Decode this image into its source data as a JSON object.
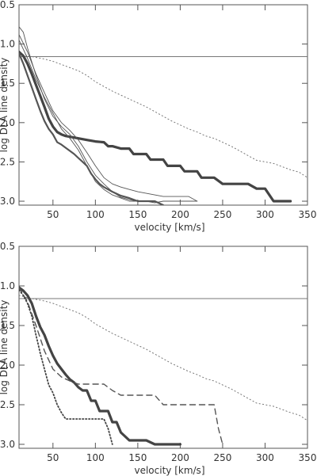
{
  "chart_data": [
    {
      "type": "line",
      "xlabel": "velocity [km/s]",
      "ylabel": "log DLA line density",
      "xlim": [
        10,
        350
      ],
      "ylim": [
        -3.05,
        -0.5
      ],
      "xticks": [
        50,
        100,
        150,
        200,
        250,
        300,
        350
      ],
      "yticks": [
        -0.5,
        -1.0,
        -1.5,
        -2.0,
        -2.5,
        -3.0
      ],
      "xtick_labels": [
        "50",
        "100",
        "150",
        "200",
        "250",
        "300",
        "350"
      ],
      "ytick_labels": [
        "-0.5",
        "-1.0",
        "-1.5",
        "-2.0",
        "-2.5",
        "-3.0"
      ],
      "grid": false,
      "hline": -1.16,
      "series": [
        {
          "style": "dotted",
          "x": [
            10,
            20,
            30,
            40,
            50,
            60,
            70,
            80,
            90,
            100,
            110,
            120,
            130,
            140,
            150,
            160,
            170,
            180,
            190,
            200,
            210,
            220,
            230,
            240,
            250,
            260,
            270,
            280,
            290,
            300,
            310,
            320,
            330,
            340,
            350
          ],
          "y": [
            -1.12,
            -1.15,
            -1.17,
            -1.19,
            -1.22,
            -1.26,
            -1.3,
            -1.34,
            -1.4,
            -1.48,
            -1.54,
            -1.6,
            -1.65,
            -1.7,
            -1.75,
            -1.8,
            -1.86,
            -1.92,
            -1.98,
            -2.03,
            -2.08,
            -2.12,
            -2.17,
            -2.2,
            -2.25,
            -2.3,
            -2.36,
            -2.42,
            -2.48,
            -2.5,
            -2.52,
            -2.56,
            -2.6,
            -2.63,
            -2.7
          ]
        },
        {
          "style": "thick",
          "x": [
            10,
            15,
            20,
            25,
            30,
            35,
            40,
            45,
            50,
            55,
            60,
            65,
            70,
            75,
            80,
            85,
            90,
            100,
            110,
            115,
            120,
            130,
            140,
            145,
            150,
            160,
            165,
            170,
            180,
            185,
            190,
            200,
            205,
            210,
            220,
            225,
            230,
            240,
            250,
            260,
            270,
            280,
            290,
            300,
            310,
            320,
            330
          ],
          "y": [
            -1.1,
            -1.15,
            -1.25,
            -1.38,
            -1.52,
            -1.66,
            -1.8,
            -1.95,
            -2.05,
            -2.12,
            -2.15,
            -2.17,
            -2.18,
            -2.19,
            -2.2,
            -2.21,
            -2.22,
            -2.24,
            -2.25,
            -2.3,
            -2.3,
            -2.33,
            -2.33,
            -2.4,
            -2.4,
            -2.4,
            -2.47,
            -2.47,
            -2.47,
            -2.55,
            -2.55,
            -2.55,
            -2.62,
            -2.62,
            -2.62,
            -2.7,
            -2.7,
            -2.7,
            -2.78,
            -2.78,
            -2.78,
            -2.78,
            -2.84,
            -2.84,
            -3.0,
            -3.0,
            -3.0
          ]
        },
        {
          "style": "thin",
          "x": [
            10,
            15,
            20,
            30,
            40,
            50,
            60,
            70,
            80,
            90,
            100,
            110,
            120,
            130,
            140,
            150,
            160,
            170,
            180,
            200,
            220
          ],
          "y": [
            -0.78,
            -0.85,
            -1.05,
            -1.4,
            -1.7,
            -1.92,
            -2.05,
            -2.15,
            -2.3,
            -2.5,
            -2.67,
            -2.78,
            -2.88,
            -2.95,
            -2.98,
            -3.0,
            -3.0,
            -3.02,
            -3.0,
            -3.0,
            -3.0
          ]
        },
        {
          "style": "thin",
          "x": [
            10,
            20,
            30,
            40,
            50,
            60,
            70,
            80,
            90,
            100,
            110,
            120,
            130,
            140,
            150,
            160,
            170,
            180,
            190,
            200,
            210,
            220
          ],
          "y": [
            -0.88,
            -1.1,
            -1.38,
            -1.62,
            -1.85,
            -2.0,
            -2.1,
            -2.22,
            -2.38,
            -2.55,
            -2.7,
            -2.78,
            -2.82,
            -2.85,
            -2.88,
            -2.9,
            -2.92,
            -2.94,
            -2.94,
            -2.94,
            -2.94,
            -3.0
          ]
        },
        {
          "style": "thin",
          "x": [
            10,
            20,
            30,
            40,
            50,
            60,
            70,
            80,
            90,
            100,
            110,
            120,
            130,
            140,
            150,
            160,
            170
          ],
          "y": [
            -0.95,
            -1.18,
            -1.45,
            -1.68,
            -1.88,
            -2.08,
            -2.2,
            -2.35,
            -2.55,
            -2.75,
            -2.85,
            -2.92,
            -2.96,
            -3.0,
            -3.0,
            -3.0,
            -3.0
          ]
        },
        {
          "style": "medium",
          "x": [
            10,
            15,
            20,
            25,
            30,
            35,
            40,
            45,
            50,
            55,
            60,
            65,
            70,
            75,
            80,
            85,
            90,
            95,
            100,
            105,
            110,
            120,
            130,
            140,
            150,
            160,
            170,
            180
          ],
          "y": [
            -1.12,
            -1.25,
            -1.4,
            -1.55,
            -1.7,
            -1.85,
            -1.98,
            -2.08,
            -2.15,
            -2.25,
            -2.28,
            -2.32,
            -2.36,
            -2.4,
            -2.45,
            -2.5,
            -2.55,
            -2.65,
            -2.72,
            -2.78,
            -2.82,
            -2.88,
            -2.93,
            -2.96,
            -3.0,
            -3.0,
            -3.0,
            -3.05
          ]
        }
      ]
    },
    {
      "type": "line",
      "xlabel": "velocity [km/s]",
      "ylabel": "log DLA line density",
      "xlim": [
        10,
        350
      ],
      "ylim": [
        -3.05,
        -0.5
      ],
      "xticks": [
        50,
        100,
        150,
        200,
        250,
        300,
        350
      ],
      "yticks": [
        -0.5,
        -1.0,
        -1.5,
        -2.0,
        -2.5,
        -3.0
      ],
      "xtick_labels": [
        "50",
        "100",
        "150",
        "200",
        "250",
        "300",
        "350"
      ],
      "ytick_labels": [
        "-0.5",
        "-1.0",
        "-1.5",
        "-2.0",
        "-2.5",
        "-3.0"
      ],
      "grid": false,
      "hline": -1.16,
      "series": [
        {
          "style": "dotted",
          "x": [
            10,
            20,
            30,
            40,
            50,
            60,
            70,
            80,
            90,
            100,
            110,
            120,
            130,
            140,
            150,
            160,
            170,
            180,
            190,
            200,
            210,
            220,
            230,
            240,
            250,
            260,
            270,
            280,
            290,
            300,
            310,
            320,
            330,
            340,
            350
          ],
          "y": [
            -1.12,
            -1.15,
            -1.17,
            -1.19,
            -1.22,
            -1.26,
            -1.3,
            -1.34,
            -1.4,
            -1.48,
            -1.54,
            -1.6,
            -1.65,
            -1.7,
            -1.75,
            -1.8,
            -1.86,
            -1.92,
            -1.98,
            -2.03,
            -2.08,
            -2.12,
            -2.17,
            -2.2,
            -2.25,
            -2.3,
            -2.36,
            -2.42,
            -2.48,
            -2.5,
            -2.52,
            -2.56,
            -2.6,
            -2.63,
            -2.7
          ]
        },
        {
          "style": "thick",
          "x": [
            10,
            15,
            20,
            25,
            30,
            35,
            40,
            45,
            50,
            55,
            60,
            65,
            70,
            75,
            80,
            85,
            90,
            95,
            100,
            105,
            110,
            115,
            120,
            125,
            130,
            140,
            150,
            160,
            170,
            180,
            190,
            200
          ],
          "y": [
            -1.02,
            -1.06,
            -1.12,
            -1.22,
            -1.38,
            -1.52,
            -1.62,
            -1.76,
            -1.88,
            -1.98,
            -2.05,
            -2.12,
            -2.18,
            -2.22,
            -2.28,
            -2.32,
            -2.32,
            -2.45,
            -2.45,
            -2.58,
            -2.58,
            -2.58,
            -2.72,
            -2.72,
            -2.85,
            -2.95,
            -2.95,
            -2.95,
            -3.0,
            -3.0,
            -3.0,
            -3.0
          ]
        },
        {
          "style": "dashed",
          "x": [
            10,
            20,
            30,
            40,
            50,
            60,
            70,
            80,
            90,
            100,
            110,
            120,
            130,
            140,
            150,
            160,
            170,
            180,
            190,
            200,
            210,
            220,
            230,
            240,
            245,
            250
          ],
          "y": [
            -1.02,
            -1.2,
            -1.5,
            -1.82,
            -2.05,
            -2.15,
            -2.2,
            -2.24,
            -2.24,
            -2.24,
            -2.24,
            -2.32,
            -2.38,
            -2.38,
            -2.38,
            -2.38,
            -2.38,
            -2.5,
            -2.5,
            -2.5,
            -2.5,
            -2.5,
            -2.5,
            -2.5,
            -2.8,
            -3.0
          ]
        },
        {
          "style": "dot-thick",
          "x": [
            10,
            15,
            20,
            25,
            30,
            35,
            40,
            45,
            50,
            55,
            60,
            65,
            70,
            80,
            90,
            100,
            110,
            115,
            120
          ],
          "y": [
            -1.05,
            -1.12,
            -1.22,
            -1.38,
            -1.62,
            -1.85,
            -2.05,
            -2.25,
            -2.35,
            -2.5,
            -2.6,
            -2.68,
            -2.68,
            -2.68,
            -2.68,
            -2.68,
            -2.68,
            -2.8,
            -3.0
          ]
        }
      ]
    }
  ]
}
